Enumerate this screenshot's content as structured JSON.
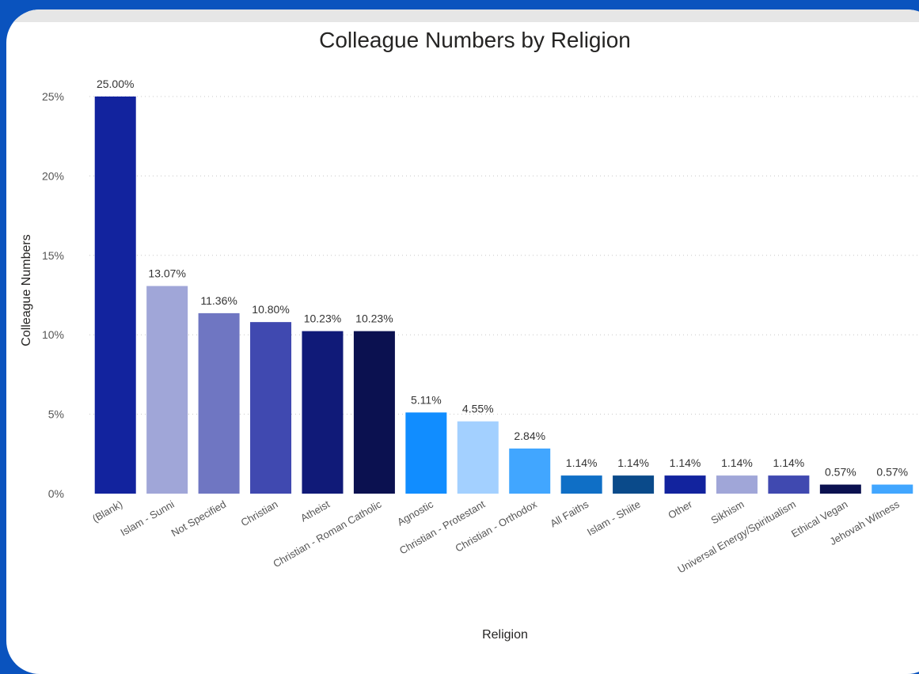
{
  "chart_data": {
    "type": "bar",
    "title": "Colleague Numbers by Religion",
    "xlabel": "Religion",
    "ylabel": "Colleague Numbers",
    "ylim": [
      0,
      25
    ],
    "yticks": [
      "0%",
      "5%",
      "10%",
      "15%",
      "20%",
      "25%"
    ],
    "grid": true,
    "categories": [
      "(Blank)",
      "Islam - Sunni",
      "Not Specified",
      "Christian",
      "Atheist",
      "Christian - Roman Catholic",
      "Agnostic",
      "Christian - Protestant",
      "Christian - Orthodox",
      "All Faiths",
      "Islam - Shiite",
      "Other",
      "Sikhism",
      "Universal Energy/Spiritualism",
      "Ethical Vegan",
      "Jehovah Witness"
    ],
    "values": [
      25.0,
      13.07,
      11.36,
      10.8,
      10.23,
      10.23,
      5.11,
      4.55,
      2.84,
      1.14,
      1.14,
      1.14,
      1.14,
      1.14,
      0.57,
      0.57
    ],
    "data_labels": [
      "25.00%",
      "13.07%",
      "11.36%",
      "10.80%",
      "10.23%",
      "10.23%",
      "5.11%",
      "4.55%",
      "2.84%",
      "1.14%",
      "1.14%",
      "1.14%",
      "1.14%",
      "1.14%",
      "0.57%",
      "0.57%"
    ],
    "colors": [
      "#12239e",
      "#a0a6d8",
      "#6f76c2",
      "#4049b0",
      "#101a78",
      "#0b1150",
      "#118dff",
      "#a3d0ff",
      "#41a6ff",
      "#0f6fc6",
      "#0a4a8a",
      "#12239e",
      "#a0a6d8",
      "#4049b0",
      "#0b1150",
      "#41a6ff"
    ]
  }
}
